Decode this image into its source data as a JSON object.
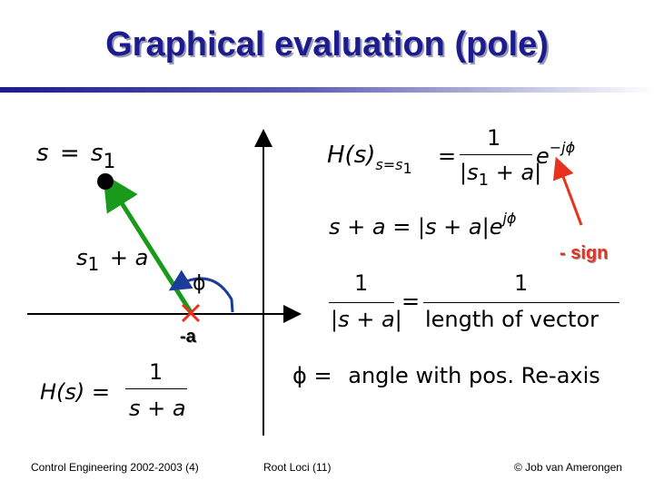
{
  "slide": {
    "title": "Graphical evaluation (pole)"
  },
  "left_panel": {
    "point_label_s": "s",
    "point_label_eq": "=",
    "point_label_s1": "s",
    "point_label_sub": "1",
    "vector_label_s": "s",
    "vector_label_sub": "1",
    "vector_label_rest": "+ a",
    "angle_symbol": "ϕ",
    "pole_label": "-a",
    "transfer_lhs": "H(s) =",
    "transfer_num": "1",
    "transfer_den": "s + a"
  },
  "right_panel": {
    "eq1_lhs": "H(s)",
    "eq1_sub": "s=s",
    "eq1_sub_idx": "1",
    "eq1_eq": "=",
    "eq1_num": "1",
    "eq1_den_bar_l": "|",
    "eq1_den_s": "s",
    "eq1_den_sub": "1",
    "eq1_den_rest": "+ a",
    "eq1_den_bar_r": "|",
    "eq1_exp_base": "e",
    "eq1_exp": "−jϕ",
    "eq2_text": "s + a = |s + a|",
    "eq2_exp_base": "e",
    "eq2_exp": "jϕ",
    "sign_note": "- sign",
    "eq3_num_left": "1",
    "eq3_den_left": "|s + a|",
    "eq3_eq": "=",
    "eq3_num_right": "1",
    "eq3_den_right": "length of vector",
    "eq4_phi": "ϕ",
    "eq4_eq": "=",
    "eq4_text": "angle with pos. Re-axis"
  },
  "footer": {
    "course": "Control Engineering 2002-2003  (4)",
    "section": "Root Loci  (11)",
    "author": "© Job van Amerongen"
  },
  "colors": {
    "title": "#1c1c8c",
    "vector": "#1a9a1a",
    "pole_marker": "#e8321e",
    "angle_arc": "#1c3c9c",
    "sign_arrow": "#e8321e"
  }
}
